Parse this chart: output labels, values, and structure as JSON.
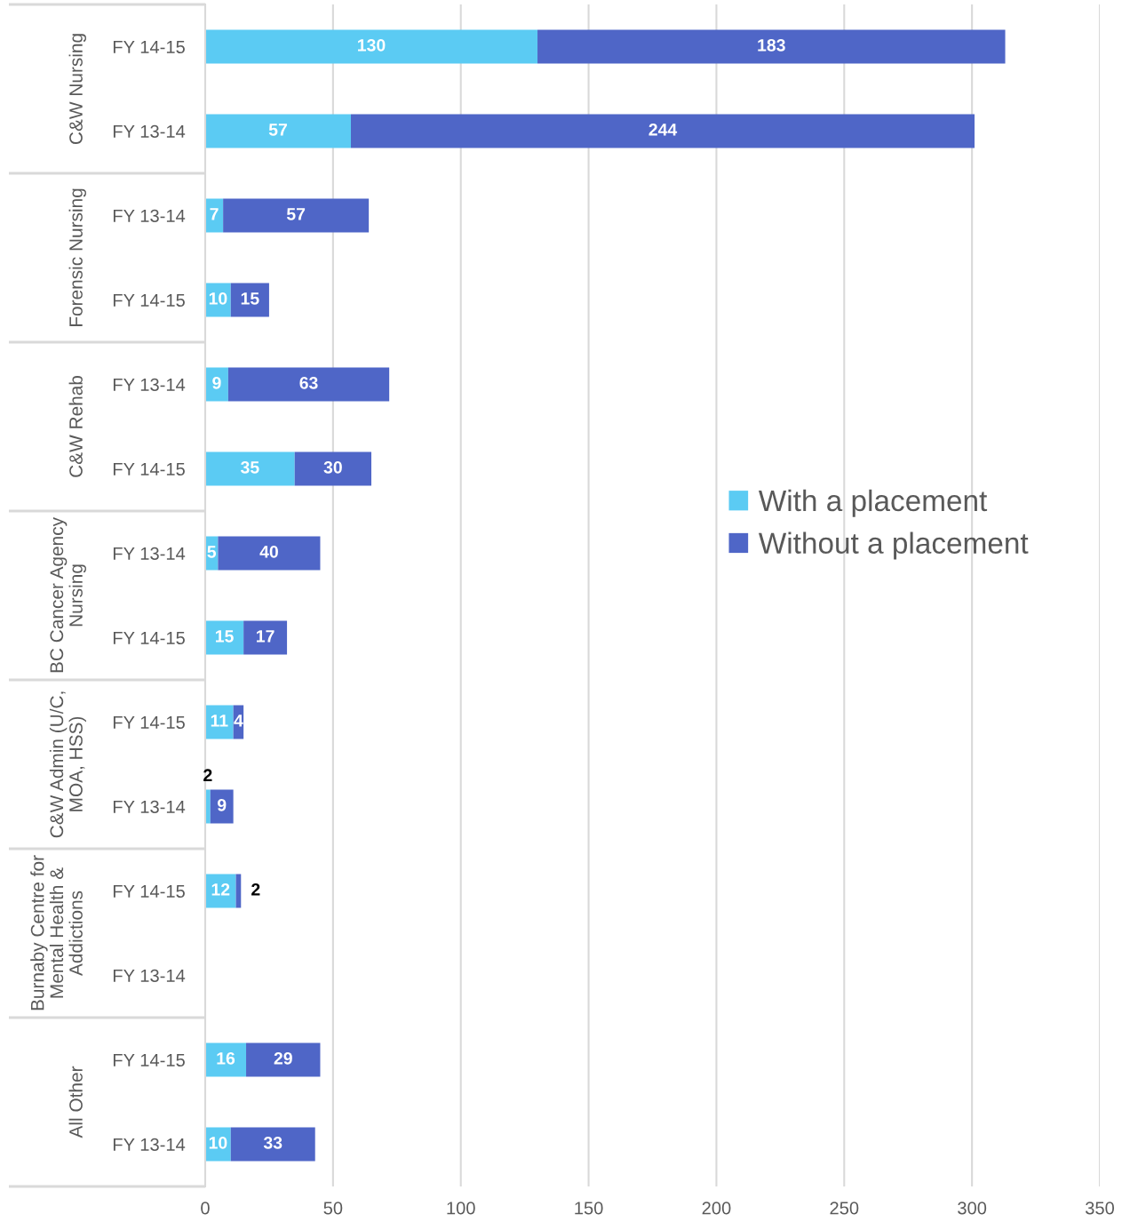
{
  "chart_data": {
    "type": "bar",
    "orientation": "horizontal",
    "stacked": true,
    "categories": [
      "FY 14-15",
      "FY 13-14",
      "FY 13-14",
      "FY 14-15",
      "FY 13-14",
      "FY 14-15",
      "FY 13-14",
      "FY 14-15",
      "FY 14-15",
      "FY 13-14",
      "FY 14-15",
      "FY 13-14",
      "FY 14-15",
      "FY 13-14"
    ],
    "series": [
      {
        "name": "With a placement",
        "color": "#5bcbf3",
        "values": [
          130,
          57,
          7,
          10,
          9,
          35,
          5,
          15,
          11,
          2,
          12,
          null,
          16,
          10
        ]
      },
      {
        "name": "Without a placement",
        "color": "#4f66c7",
        "values": [
          183,
          244,
          57,
          15,
          63,
          30,
          40,
          17,
          4,
          9,
          2,
          null,
          29,
          33
        ]
      }
    ],
    "xlim": [
      0,
      350
    ],
    "xticks": [
      0,
      50,
      100,
      150,
      200,
      250,
      300,
      350
    ],
    "grid": "x",
    "legend": "right",
    "data_labels": true,
    "annotations": [
      "C&W Nursing",
      "Forensic Nursing",
      "C&W Rehab",
      "BC Cancer Agency Nursing",
      "C&W Admin (U/C, MOA, HSS)",
      "Burnaby Centre for Mental Health & Addictions",
      "All Other"
    ]
  }
}
